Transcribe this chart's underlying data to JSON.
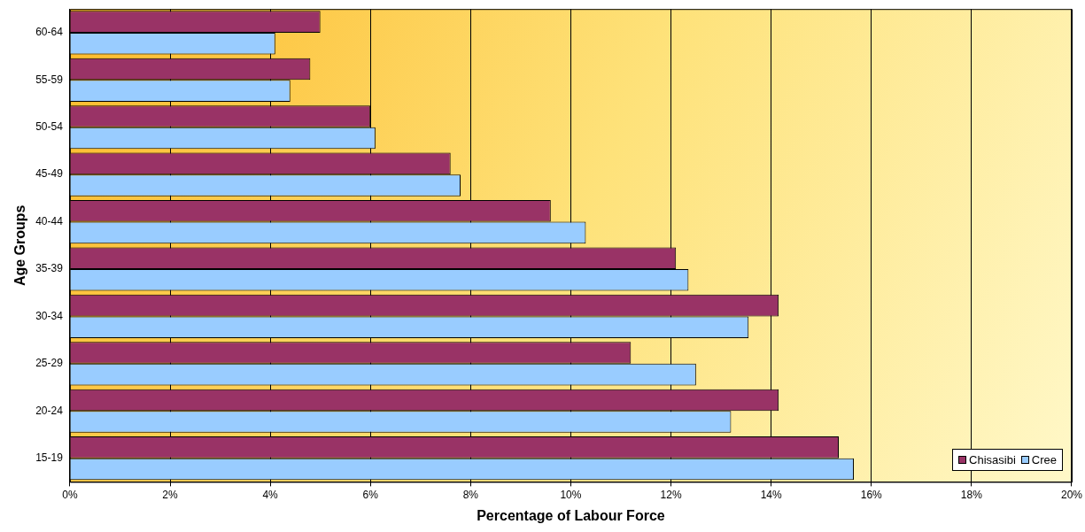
{
  "chart_data": {
    "type": "bar",
    "orientation": "horizontal",
    "xlabel": "Percentage of Labour Force",
    "ylabel": "Age Groups",
    "categories": [
      "60-64",
      "55-59",
      "50-54",
      "45-49",
      "40-44",
      "35-39",
      "30-34",
      "25-29",
      "20-24",
      "15-19"
    ],
    "series": [
      {
        "name": "Chisasibi",
        "color": "#993366",
        "values": [
          5.0,
          4.8,
          6.0,
          7.6,
          9.6,
          12.1,
          14.15,
          11.2,
          14.15,
          15.35
        ]
      },
      {
        "name": "Cree",
        "color": "#99ccff",
        "values": [
          4.1,
          4.4,
          6.1,
          7.8,
          10.3,
          12.35,
          13.55,
          12.5,
          13.2,
          15.65
        ]
      }
    ],
    "xlim": [
      0,
      20
    ],
    "xticks": [
      {
        "value": 0,
        "label": "0%"
      },
      {
        "value": 2,
        "label": "2%"
      },
      {
        "value": 4,
        "label": "4%"
      },
      {
        "value": 6,
        "label": "6%"
      },
      {
        "value": 8,
        "label": "8%"
      },
      {
        "value": 10,
        "label": "10%"
      },
      {
        "value": 12,
        "label": "12%"
      },
      {
        "value": 14,
        "label": "14%"
      },
      {
        "value": 16,
        "label": "16%"
      },
      {
        "value": 18,
        "label": "18%"
      },
      {
        "value": 20,
        "label": "20%"
      }
    ],
    "grid": "x",
    "legend": "bottom right"
  }
}
